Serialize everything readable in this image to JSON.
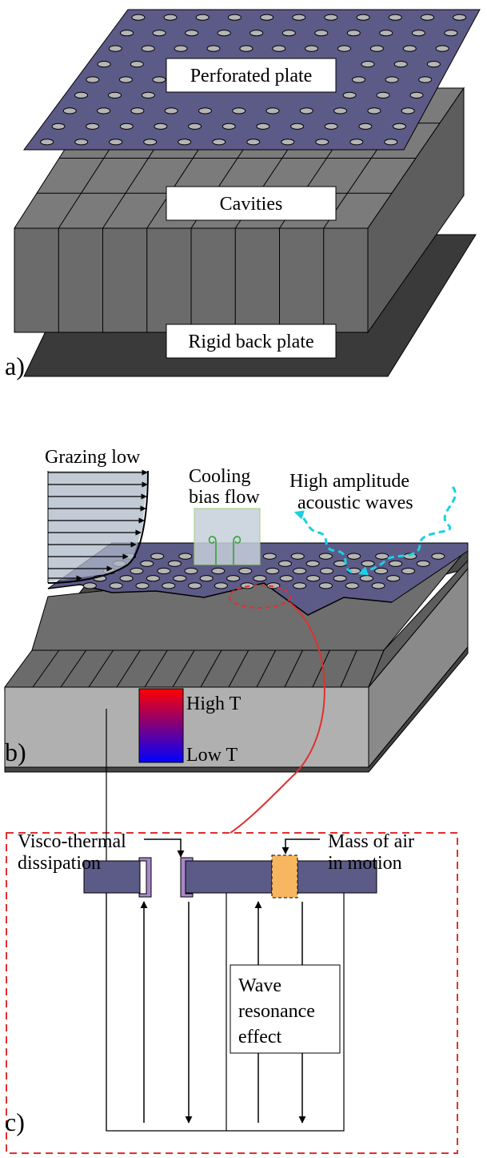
{
  "panel_a": {
    "letter": "a)",
    "labels": {
      "perforated_plate": "Perforated plate",
      "cavities": "Cavities",
      "rigid_back_plate": "Rigid back plate"
    }
  },
  "panel_b": {
    "letter": "b)",
    "labels": {
      "grazing_flow": "Grazing low",
      "cooling_line1": "Cooling",
      "cooling_line2": "bias flow",
      "acoustic_line1": "High amplitude",
      "acoustic_line2": "acoustic waves",
      "high_t": "High T",
      "low_t": "Low T"
    }
  },
  "panel_c": {
    "letter": "c)",
    "labels": {
      "visco_line1": "Visco-thermal",
      "visco_line2": "dissipation",
      "mass_line1": "Mass of air",
      "mass_line2": "in motion",
      "wave_line1": "Wave",
      "wave_line2": "resonance",
      "wave_line3": "effect"
    }
  },
  "colors": {
    "plate": "#5c5a87",
    "cavity_front": "#6b6b6b",
    "cavity_top": "#7e7e7e",
    "back_plate": "#3a3a3a",
    "liner_body": "#b0b0b0",
    "wave_arrow": "#1ad0e6",
    "callout": "#e03030",
    "visco_layer": "#a888c8",
    "air_mass": "#f7b760",
    "temp_high": "#ff0000",
    "temp_low": "#0000ff"
  }
}
